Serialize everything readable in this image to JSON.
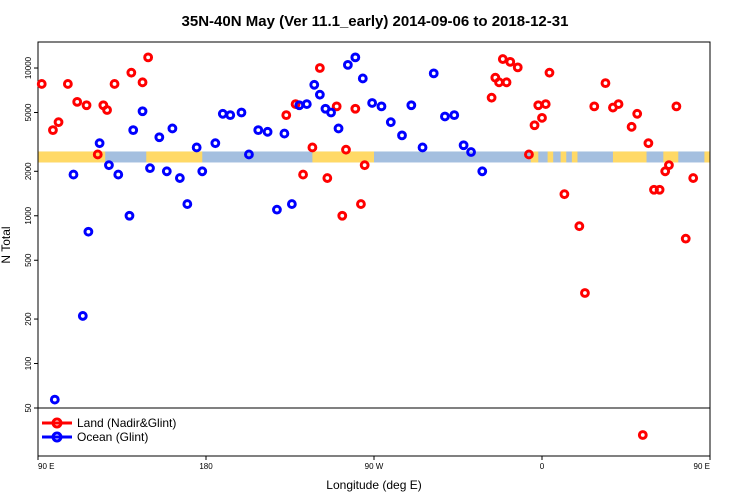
{
  "chart_data": {
    "type": "scatter",
    "title": "35N-40N May (Ver 11.1_early)   2014-09-06 to 2018-12-31",
    "xlabel": "Longitude (deg E)",
    "ylabel": "N Total",
    "y_scale": "log",
    "xlim": [
      90,
      450
    ],
    "ylim": [
      50,
      15000
    ],
    "x_ticks": [
      {
        "value": 90,
        "label": "90 E"
      },
      {
        "value": 180,
        "label": "180"
      },
      {
        "value": 270,
        "label": "90 W"
      },
      {
        "value": 360,
        "label": "0"
      },
      {
        "value": 450,
        "label": "90 E"
      },
      {
        "value": 540,
        "label": "180"
      }
    ],
    "y_ticks": [
      {
        "value": 50,
        "label": "50"
      },
      {
        "value": 100,
        "label": "100"
      },
      {
        "value": 200,
        "label": "200"
      },
      {
        "value": 500,
        "label": "500"
      },
      {
        "value": 1000,
        "label": "1000"
      },
      {
        "value": 2000,
        "label": "2000"
      },
      {
        "value": 5000,
        "label": "5000"
      },
      {
        "value": 10000,
        "label": "10000"
      }
    ],
    "land_ocean_band": {
      "y": 2500,
      "land_color": "#ffd966",
      "ocean_color": "#a4bfdf",
      "land_ranges": [
        [
          90,
          126
        ],
        [
          148,
          178
        ],
        [
          237,
          270
        ],
        [
          354,
          358
        ],
        [
          363,
          366
        ],
        [
          370,
          373
        ],
        [
          376,
          379
        ],
        [
          398,
          416
        ],
        [
          425,
          433
        ],
        [
          447,
          486
        ],
        [
          495,
          500
        ],
        [
          520,
          528
        ],
        [
          530,
          531
        ]
      ]
    },
    "legend": {
      "position": "bottom-left"
    },
    "series": [
      {
        "name": "Land (Nadir&Glint)",
        "color": "#ff0000",
        "x": [
          92,
          98,
          101,
          106,
          111,
          116,
          122,
          125,
          127,
          131,
          140,
          146,
          149,
          223,
          228,
          232,
          237,
          241,
          245,
          250,
          253,
          255,
          260,
          263,
          265,
          333,
          335,
          337,
          339,
          341,
          343,
          347,
          353,
          356,
          358,
          360,
          362,
          364,
          372,
          380,
          383,
          388,
          394,
          398,
          401,
          408,
          411,
          414,
          417,
          420,
          423,
          426,
          428,
          432,
          437,
          441
        ],
        "y": [
          7800,
          3800,
          4300,
          7800,
          5900,
          5600,
          2600,
          5600,
          5200,
          7800,
          9300,
          8000,
          11800,
          4800,
          5700,
          1900,
          2900,
          10000,
          1800,
          5500,
          1000,
          2800,
          5300,
          1200,
          2200,
          6300,
          8600,
          8000,
          11500,
          8000,
          11000,
          10100,
          2600,
          4100,
          5600,
          4600,
          5700,
          9300,
          1400,
          850,
          300,
          5500,
          7900,
          5400,
          5700,
          4000,
          4900,
          45,
          3100,
          1500,
          1500,
          2000,
          2200,
          5500,
          700,
          1800
        ]
      },
      {
        "name": "Ocean (Glint)",
        "color": "#0000ff",
        "x": [
          99,
          109,
          114,
          117,
          123,
          128,
          133,
          139,
          141,
          146,
          150,
          155,
          159,
          162,
          166,
          170,
          175,
          178,
          185,
          189,
          193,
          199,
          203,
          208,
          213,
          218,
          222,
          226,
          230,
          234,
          238,
          241,
          244,
          247,
          251,
          256,
          260,
          264,
          269,
          274,
          279,
          285,
          290,
          296,
          302,
          308,
          313,
          318,
          322,
          328
        ],
        "y": [
          57,
          1900,
          210,
          780,
          3100,
          2200,
          1900,
          1000,
          3800,
          5100,
          2100,
          3400,
          2000,
          3900,
          1800,
          1200,
          2900,
          2000,
          3100,
          4900,
          4800,
          5000,
          2600,
          3800,
          3700,
          1100,
          3600,
          1200,
          5600,
          5700,
          7700,
          6600,
          5300,
          5000,
          3900,
          10500,
          11800,
          8500,
          5800,
          5500,
          4300,
          3500,
          5600,
          2900,
          9200,
          4700,
          4800,
          3000,
          2700,
          2000
        ]
      }
    ]
  }
}
